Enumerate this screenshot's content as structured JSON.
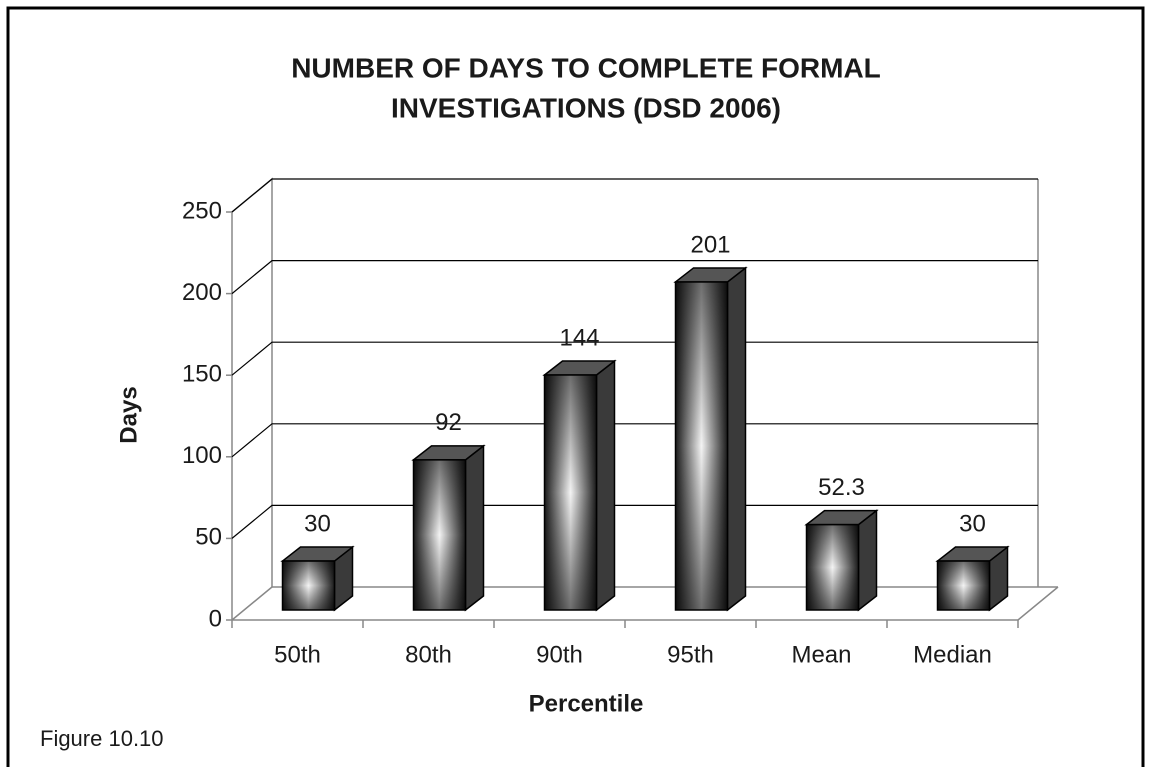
{
  "chart_data": {
    "type": "bar3d",
    "title": "NUMBER OF DAYS TO COMPLETE FORMAL",
    "title_line2": "INVESTIGATIONS (DSD 2006)",
    "categories": [
      "50th",
      "80th",
      "90th",
      "95th",
      "Mean",
      "Median"
    ],
    "values": [
      30,
      92,
      144,
      201,
      52.3,
      30
    ],
    "ylim": [
      0,
      250
    ],
    "yticks": [
      0,
      50,
      100,
      150,
      200,
      250
    ],
    "grid": true,
    "xlabel": "Percentile",
    "ylabel": "Days",
    "caption": "Figure 10.10"
  }
}
